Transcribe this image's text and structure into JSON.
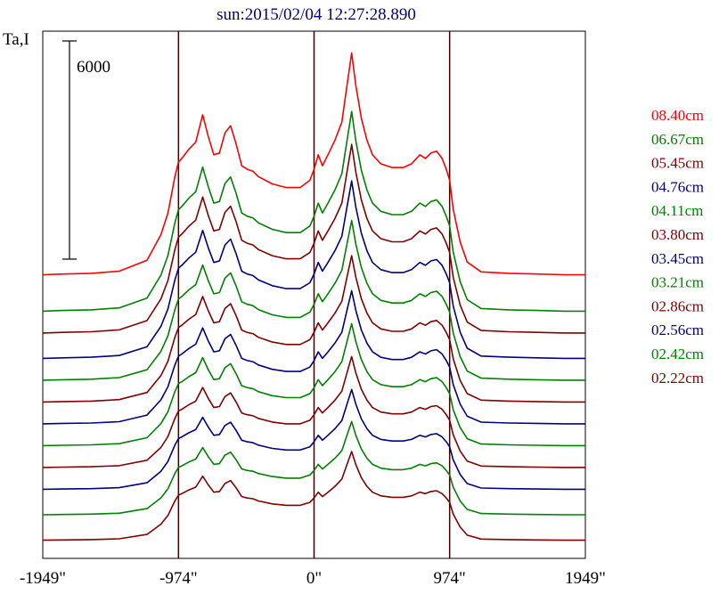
{
  "chart_data": {
    "type": "line",
    "title": "sun:2015/02/04 12:27:28.890",
    "ylabel": "Ta,I",
    "scale_bar_label": "6000",
    "scale_bar_value": 6000,
    "xlim": [
      -1949,
      1949
    ],
    "x_ticks": [
      {
        "value": -1949,
        "label": "-1949\""
      },
      {
        "value": -974,
        "label": "-974\""
      },
      {
        "value": 0,
        "label": "0\""
      },
      {
        "value": 974,
        "label": "974\""
      },
      {
        "value": 1949,
        "label": "1949\""
      }
    ],
    "vertical_lines": [
      -974,
      0,
      974
    ],
    "legend_position": "right",
    "x": [
      -1949,
      -1800,
      -1600,
      -1400,
      -1200,
      -1100,
      -1050,
      -1000,
      -974,
      -950,
      -900,
      -850,
      -800,
      -760,
      -720,
      -680,
      -640,
      -600,
      -560,
      -520,
      -480,
      -440,
      -400,
      -300,
      -200,
      -100,
      -30,
      0,
      30,
      60,
      100,
      150,
      200,
      240,
      270,
      300,
      340,
      380,
      420,
      480,
      560,
      640,
      700,
      760,
      800,
      840,
      880,
      920,
      950,
      974,
      1000,
      1050,
      1100,
      1200,
      1400,
      1600,
      1800,
      1949
    ],
    "series": [
      {
        "name": "08.40cm",
        "color": "#ff0000",
        "offset": 7300,
        "scale": 1.0
      },
      {
        "name": "06.67cm",
        "color": "#008000",
        "offset": 6300,
        "scale": 0.9
      },
      {
        "name": "05.45cm",
        "color": "#800000",
        "offset": 5700,
        "scale": 0.85
      },
      {
        "name": "04.76cm",
        "color": "#000080",
        "offset": 5000,
        "scale": 0.8
      },
      {
        "name": "04.11cm",
        "color": "#008000",
        "offset": 4400,
        "scale": 0.72
      },
      {
        "name": "03.80cm",
        "color": "#800000",
        "offset": 3800,
        "scale": 0.66
      },
      {
        "name": "03.45cm",
        "color": "#000080",
        "offset": 3200,
        "scale": 0.6
      },
      {
        "name": "03.21cm",
        "color": "#008000",
        "offset": 2600,
        "scale": 0.55
      },
      {
        "name": "02.86cm",
        "color": "#800000",
        "offset": 2000,
        "scale": 0.5
      },
      {
        "name": "02.56cm",
        "color": "#000080",
        "offset": 1400,
        "scale": 0.45
      },
      {
        "name": "02.42cm",
        "color": "#008000",
        "offset": 700,
        "scale": 0.42
      },
      {
        "name": "02.22cm",
        "color": "#800000",
        "offset": 0,
        "scale": 0.4
      }
    ],
    "profile": [
      0,
      20,
      40,
      100,
      400,
      1100,
      1700,
      2700,
      3100,
      3200,
      3450,
      3650,
      4400,
      3800,
      3300,
      3350,
      3900,
      4100,
      3600,
      3000,
      2900,
      2850,
      2700,
      2500,
      2400,
      2400,
      2600,
      2900,
      3300,
      3000,
      3300,
      3700,
      4200,
      5300,
      6100,
      5200,
      4300,
      3700,
      3300,
      3050,
      2950,
      2950,
      3050,
      3300,
      3200,
      3350,
      3400,
      3200,
      2900,
      2600,
      1800,
      900,
      350,
      80,
      40,
      20,
      0,
      0
    ],
    "ylim": [
      -500,
      14000
    ]
  }
}
